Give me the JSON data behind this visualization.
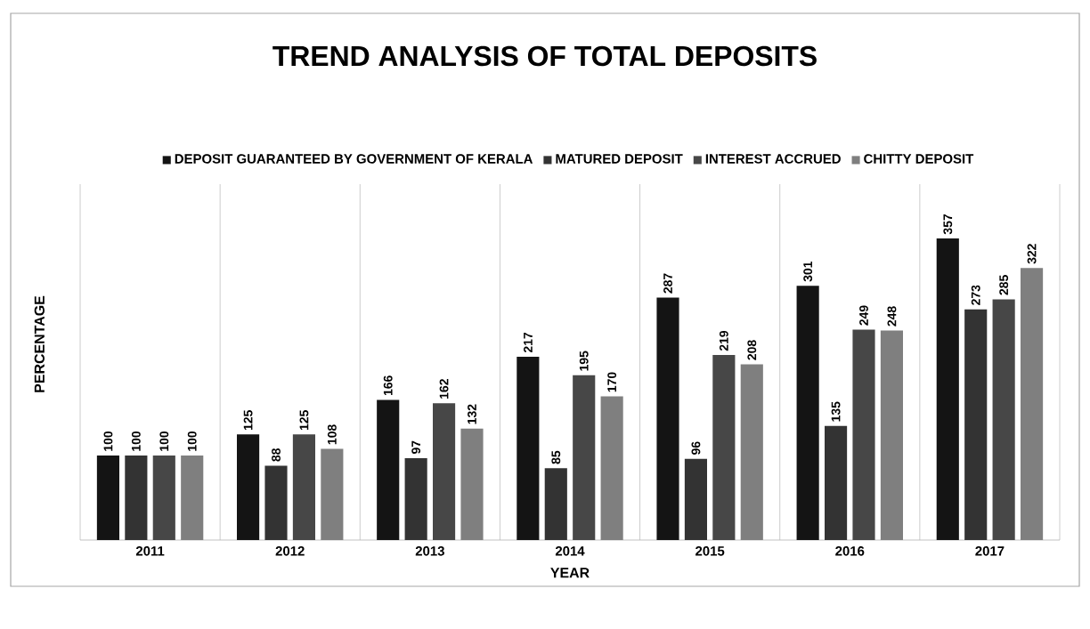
{
  "chart_data": {
    "type": "bar",
    "title": "TREND ANALYSIS OF TOTAL DEPOSITS",
    "xlabel": "YEAR",
    "ylabel": "PERCENTAGE",
    "categories": [
      "2011",
      "2012",
      "2013",
      "2014",
      "2015",
      "2016",
      "2017"
    ],
    "series": [
      {
        "name": "DEPOSIT GUARANTEED BY GOVERNMENT OF KERALA",
        "color": "#141414",
        "values": [
          100,
          125,
          166,
          217,
          287,
          301,
          357
        ]
      },
      {
        "name": "MATURED DEPOSIT",
        "color": "#333333",
        "values": [
          100,
          88,
          97,
          85,
          96,
          135,
          273
        ]
      },
      {
        "name": "INTEREST ACCRUED",
        "color": "#474747",
        "values": [
          100,
          125,
          162,
          195,
          219,
          249,
          285
        ]
      },
      {
        "name": "CHITTY DEPOSIT",
        "color": "#7f7f7f",
        "values": [
          100,
          108,
          132,
          170,
          208,
          248,
          322
        ]
      }
    ],
    "data_labels": true,
    "grid": "x",
    "legend": "top"
  }
}
